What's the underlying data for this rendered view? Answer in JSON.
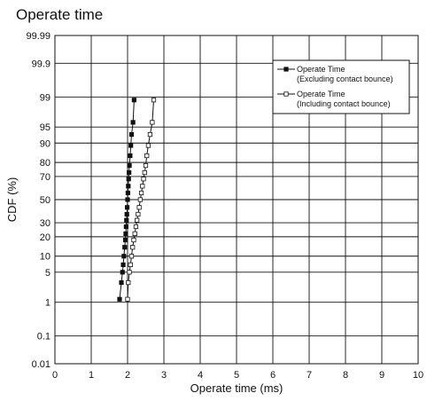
{
  "title": "Operate time",
  "chart_data": {
    "type": "scatter",
    "xlabel": "Operate time (ms)",
    "ylabel": "CDF (%)",
    "xlim": [
      0,
      10
    ],
    "xticks": [
      "0",
      "1",
      "2",
      "3",
      "4",
      "5",
      "6",
      "7",
      "8",
      "9",
      "10"
    ],
    "yscale": "probability",
    "ylim": [
      0.01,
      99.99
    ],
    "yticks": [
      "0.01",
      "0.1",
      "1",
      "5",
      "10",
      "20",
      "30",
      "50",
      "70",
      "80",
      "90",
      "95",
      "99",
      "99.9",
      "99.99"
    ],
    "grid": true,
    "legend_position": "top-right",
    "series": [
      {
        "name": "Operate Time",
        "name_line2": "(Excluding contact bounce)",
        "marker": "filled-square",
        "color": "#111111",
        "x": [
          1.78,
          1.83,
          1.86,
          1.88,
          1.9,
          1.92,
          1.94,
          1.95,
          1.96,
          1.97,
          1.98,
          1.99,
          2.0,
          2.01,
          2.02,
          2.03,
          2.04,
          2.05,
          2.07,
          2.09,
          2.11,
          2.15,
          2.18
        ],
        "y": [
          1.2,
          3,
          5,
          7,
          10,
          14,
          18,
          22,
          27,
          32,
          37,
          43,
          50,
          56,
          62,
          68,
          73,
          78,
          84,
          89,
          93,
          96,
          98.8
        ]
      },
      {
        "name": "Operate Time",
        "name_line2": "(Including contact bounce)",
        "marker": "open-square",
        "color": "#111111",
        "x": [
          2.0,
          2.02,
          2.05,
          2.08,
          2.11,
          2.14,
          2.17,
          2.2,
          2.23,
          2.26,
          2.29,
          2.32,
          2.35,
          2.38,
          2.41,
          2.44,
          2.47,
          2.5,
          2.53,
          2.57,
          2.62,
          2.68,
          2.72
        ],
        "y": [
          1.2,
          3,
          5,
          7,
          10,
          14,
          18,
          22,
          27,
          32,
          37,
          43,
          50,
          56,
          62,
          68,
          73,
          78,
          84,
          89,
          93,
          96,
          98.8
        ]
      }
    ]
  }
}
